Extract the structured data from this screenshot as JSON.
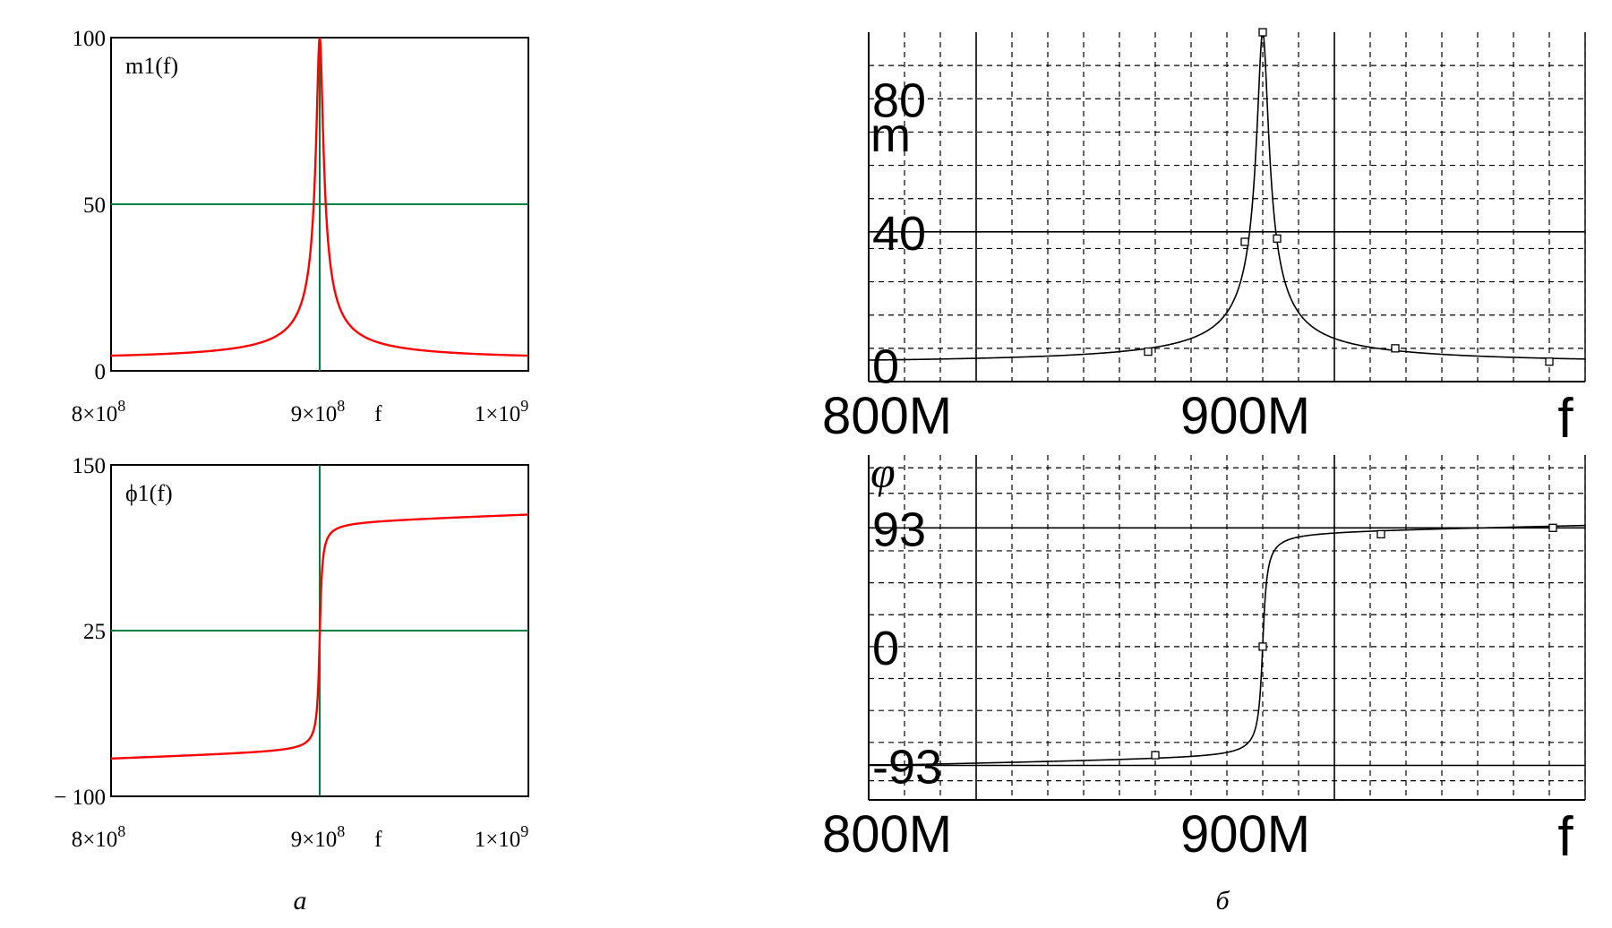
{
  "panels": {
    "a": {
      "caption": "а"
    },
    "b": {
      "caption": "б"
    }
  },
  "chart_data": [
    {
      "id": "a_top",
      "type": "line",
      "series_label": "m1(f)",
      "x_axis": {
        "var": "f",
        "range": [
          800000000,
          1000000000
        ],
        "ticks": [
          {
            "value": 800000000,
            "mantissa": "8×10",
            "exp": "8"
          },
          {
            "value": 900000000,
            "mantissa": "9×10",
            "exp": "8"
          },
          {
            "value": 1000000000,
            "mantissa": "1×10",
            "exp": "9"
          }
        ]
      },
      "y_axis": {
        "range": [
          0,
          100
        ],
        "ticks": [
          {
            "value": 100,
            "label": "100"
          },
          {
            "value": 50,
            "label": "50"
          },
          {
            "value": 0,
            "label": "0"
          }
        ]
      },
      "markers": {
        "x": 900000000,
        "y": 50
      },
      "colors": {
        "curve": "#ff0000",
        "marker": "#008040",
        "frame": "#000000"
      },
      "shape": {
        "kind": "magnitude",
        "f0": 900000000,
        "peak": 100,
        "floor": 3
      }
    },
    {
      "id": "a_bottom",
      "type": "line",
      "series_label": "ϕ1(f)",
      "x_axis": {
        "var": "f",
        "range": [
          800000000,
          1000000000
        ],
        "ticks": [
          {
            "value": 800000000,
            "mantissa": "8×10",
            "exp": "8"
          },
          {
            "value": 900000000,
            "mantissa": "9×10",
            "exp": "8"
          },
          {
            "value": 1000000000,
            "mantissa": "1×10",
            "exp": "9"
          }
        ]
      },
      "y_axis": {
        "range": [
          -100,
          150
        ],
        "ticks": [
          {
            "value": 150,
            "label": "150"
          },
          {
            "value": 25,
            "label": "25"
          },
          {
            "value": -100,
            "label": "− 100"
          }
        ]
      },
      "markers": {
        "x": 900000000,
        "y": 25
      },
      "colors": {
        "curve": "#ff0000",
        "marker": "#008040",
        "frame": "#000000"
      },
      "shape": {
        "kind": "phase",
        "f0": 900000000,
        "low": -72,
        "high": 113
      }
    },
    {
      "id": "b_top",
      "type": "line",
      "series_label": "m",
      "x_axis": {
        "var": "f",
        "range": [
          770000000,
          970000000
        ],
        "ticks": [
          {
            "value": 800000000,
            "label": "800M"
          },
          {
            "value": 900000000,
            "label": "900M"
          }
        ]
      },
      "y_axis": {
        "range": [
          -5,
          100
        ],
        "ticks": [
          {
            "value": 80,
            "label": "80"
          },
          {
            "value": 40,
            "label": "40"
          },
          {
            "value": 0,
            "label": "0"
          }
        ]
      },
      "points": [
        {
          "x": 848000000,
          "y": 4
        },
        {
          "x": 875000000,
          "y": 37
        },
        {
          "x": 880000000,
          "y": 100
        },
        {
          "x": 884000000,
          "y": 38
        },
        {
          "x": 917000000,
          "y": 5
        },
        {
          "x": 960000000,
          "y": 1
        }
      ],
      "colors": {
        "curve": "#000000",
        "grid": "#000000"
      },
      "shape": {
        "kind": "magnitude",
        "f0": 880000000,
        "peak": 100,
        "floor": 0
      }
    },
    {
      "id": "b_bottom",
      "type": "line",
      "series_label": "φ",
      "x_axis": {
        "var": "f",
        "range": [
          770000000,
          970000000
        ],
        "ticks": [
          {
            "value": 800000000,
            "label": "800M"
          },
          {
            "value": 900000000,
            "label": "900M"
          }
        ]
      },
      "y_axis": {
        "range": [
          -120,
          150
        ],
        "ticks": [
          {
            "value": 93,
            "label": "93"
          },
          {
            "value": 0,
            "label": "0"
          },
          {
            "value": -93,
            "label": "-93"
          }
        ]
      },
      "points": [
        {
          "x": 850000000,
          "y": -85
        },
        {
          "x": 880000000,
          "y": 0
        },
        {
          "x": 913000000,
          "y": 88
        },
        {
          "x": 961000000,
          "y": 93
        }
      ],
      "colors": {
        "curve": "#000000",
        "grid": "#000000"
      },
      "shape": {
        "kind": "phase",
        "f0": 880000000,
        "low": -93,
        "high": 96
      }
    }
  ]
}
